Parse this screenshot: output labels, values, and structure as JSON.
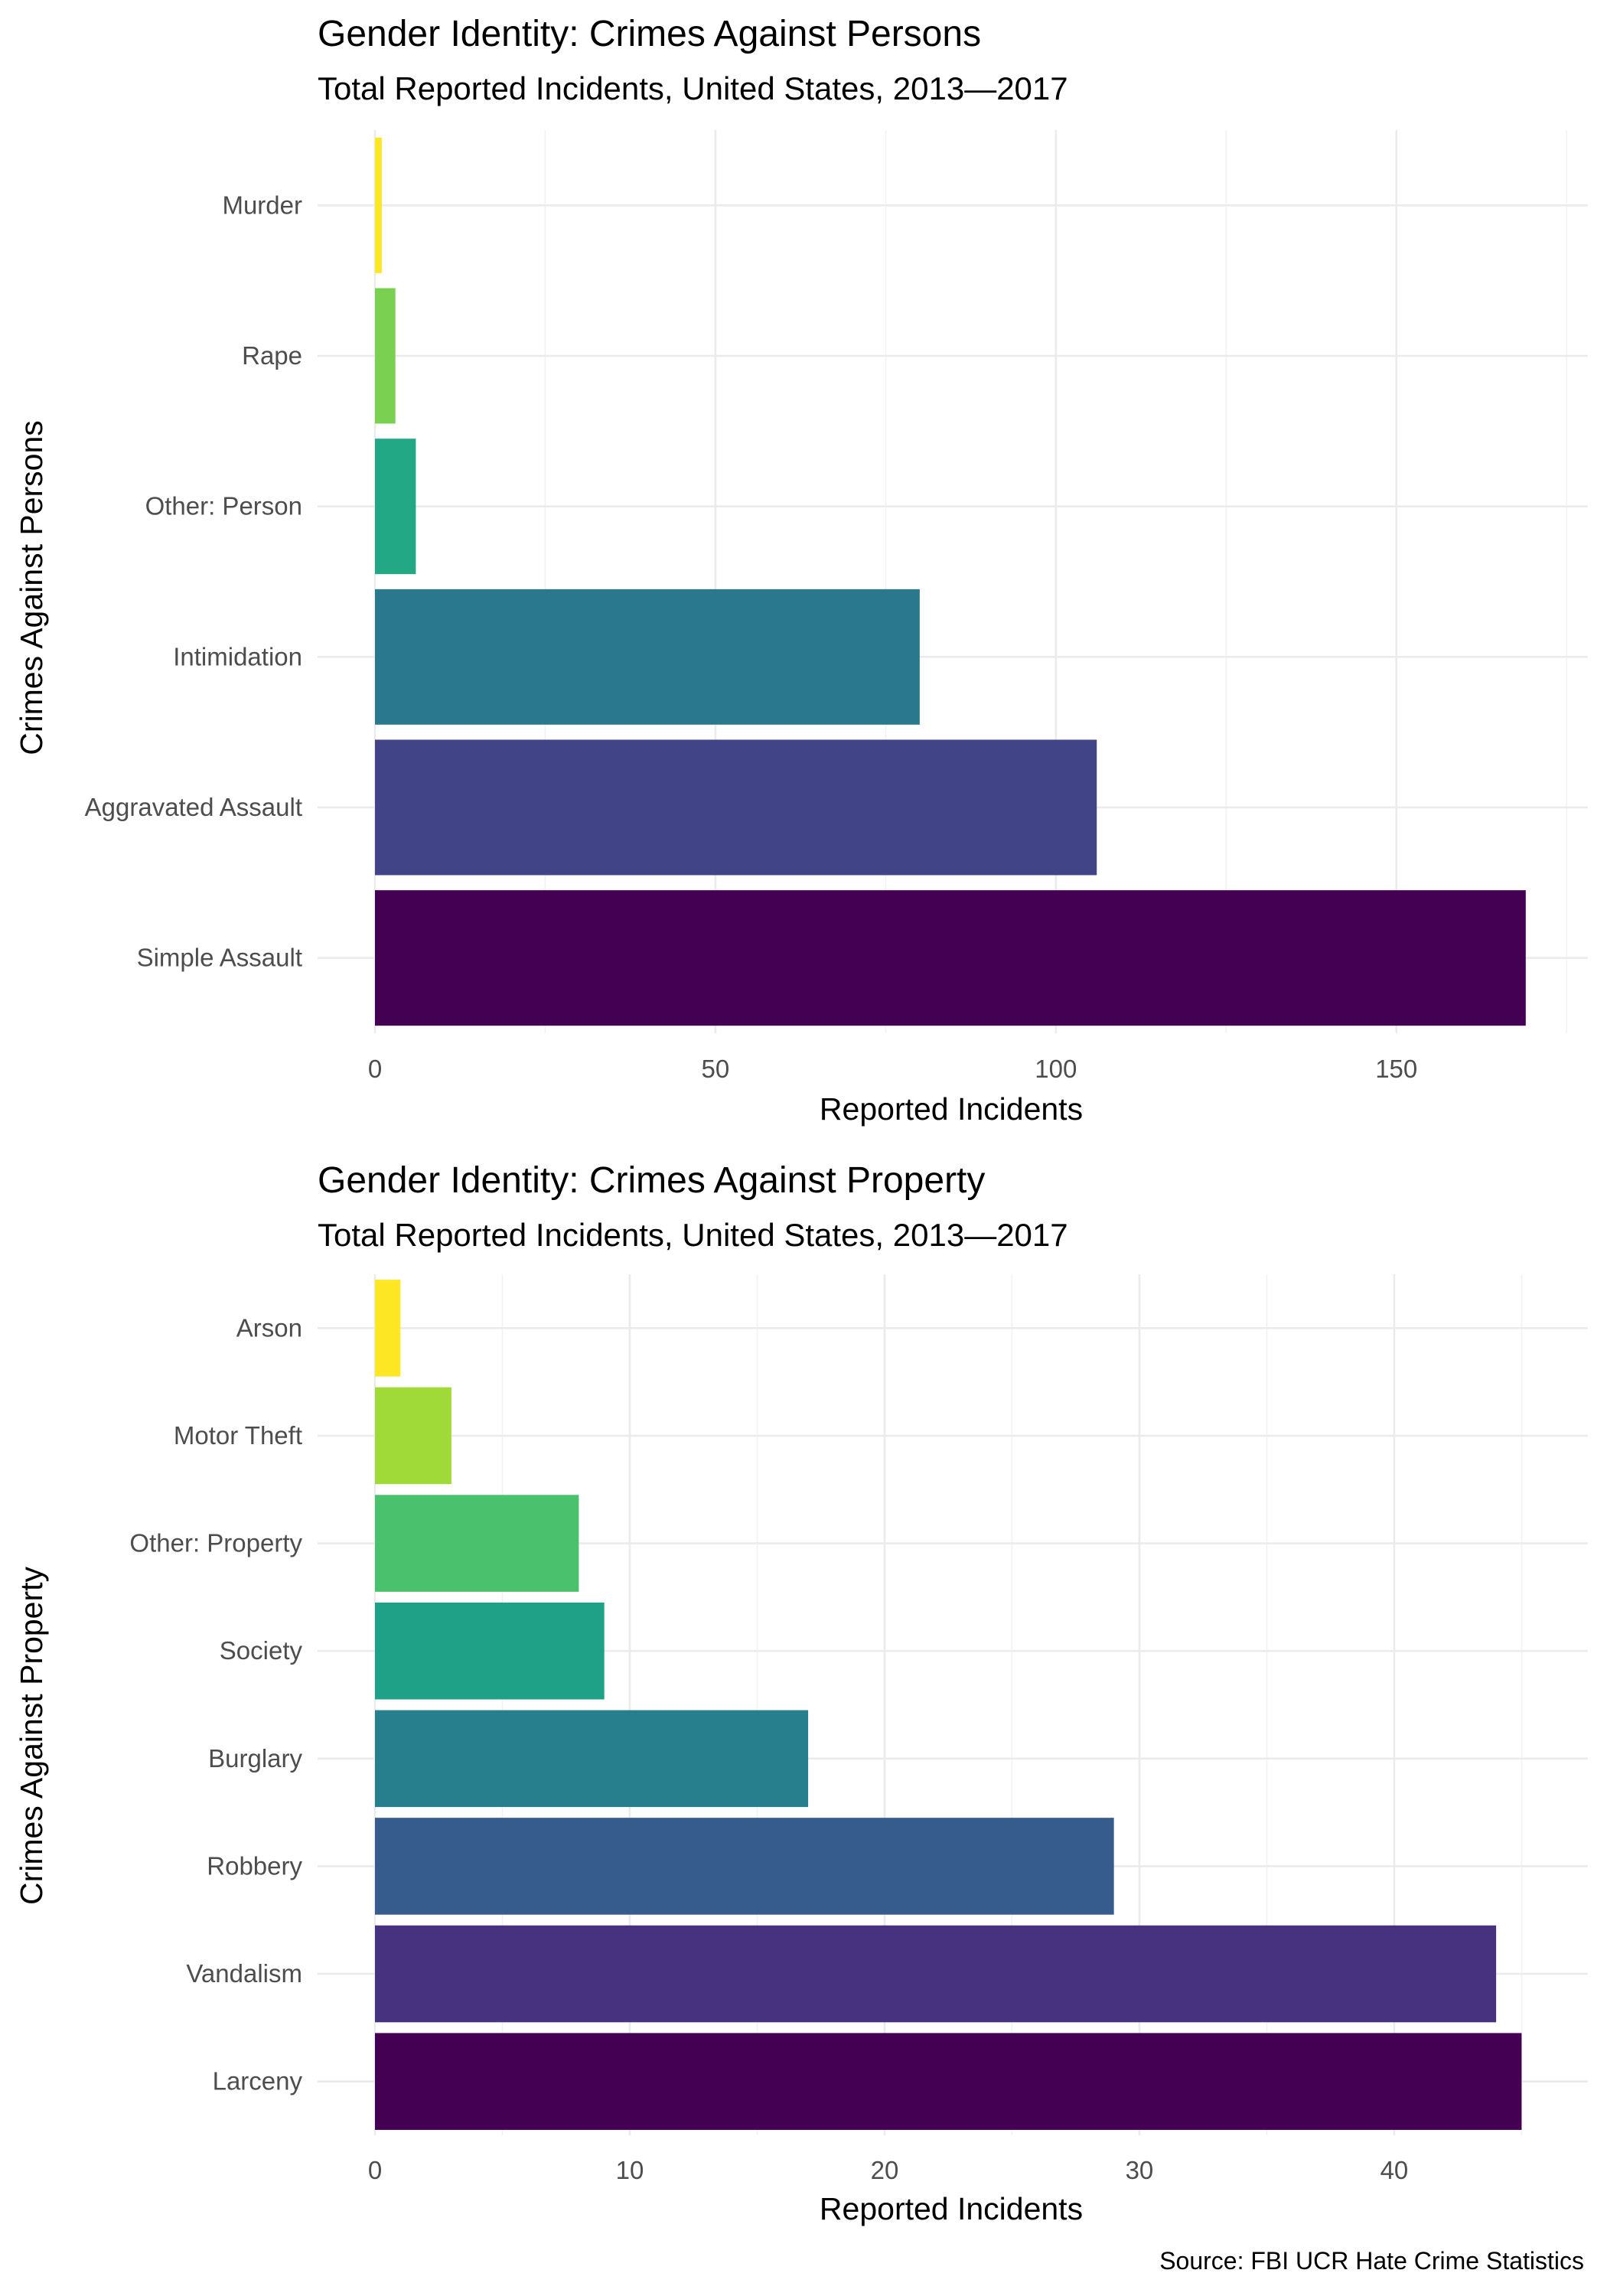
{
  "chart_data": [
    {
      "type": "bar",
      "orientation": "horizontal",
      "title": "Gender Identity: Crimes Against Persons",
      "subtitle": "Total Reported Incidents, United States, 2013—2017",
      "xlabel": "Reported Incidents",
      "ylabel": "Crimes Against Persons",
      "categories": [
        "Murder",
        "Rape",
        "Other: Person",
        "Intimidation",
        "Aggravated Assault",
        "Simple Assault"
      ],
      "values": [
        1,
        3,
        6,
        80,
        106,
        169
      ],
      "colors": [
        "#FDE725",
        "#7AD151",
        "#22A884",
        "#2A788E",
        "#414487",
        "#440154"
      ],
      "xlim": [
        0,
        177
      ],
      "xticks": [
        0,
        50,
        100,
        150
      ],
      "grid": true,
      "legend": "none"
    },
    {
      "type": "bar",
      "orientation": "horizontal",
      "title": "Gender Identity: Crimes Against Property",
      "subtitle": "Total Reported Incidents, United States, 2013—2017",
      "xlabel": "Reported Incidents",
      "ylabel": "Crimes Against Property",
      "categories": [
        "Arson",
        "Motor Theft",
        "Other: Property",
        "Society",
        "Burglary",
        "Robbery",
        "Vandalism",
        "Larceny"
      ],
      "values": [
        1,
        3,
        8,
        9,
        17,
        29,
        44,
        45
      ],
      "colors": [
        "#FDE725",
        "#A0DA39",
        "#4AC16D",
        "#1FA187",
        "#277F8E",
        "#365C8D",
        "#46327E",
        "#440154"
      ],
      "xlim": [
        0,
        47.3
      ],
      "xticks": [
        0,
        10,
        20,
        30,
        40
      ],
      "grid": true,
      "legend": "none"
    }
  ],
  "caption": "Source: FBI UCR Hate Crime Statistics"
}
